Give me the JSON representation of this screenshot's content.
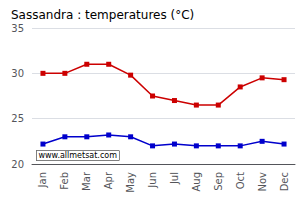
{
  "chart_data": {
    "type": "line",
    "title": "Sassandra : temperatures (°C)",
    "categories": [
      "Jan",
      "Feb",
      "Mar",
      "Apr",
      "May",
      "Jun",
      "Jul",
      "Aug",
      "Sep",
      "Oct",
      "Nov",
      "Dec"
    ],
    "series": [
      {
        "color": "#cc0000",
        "marker": "square",
        "values": [
          30.0,
          30.0,
          31.0,
          31.0,
          29.8,
          27.5,
          27.0,
          26.5,
          26.5,
          28.5,
          29.5,
          29.3
        ]
      },
      {
        "color": "#0000cc",
        "marker": "square",
        "values": [
          22.2,
          23.0,
          23.0,
          23.2,
          23.0,
          22.0,
          22.2,
          22.0,
          22.0,
          22.0,
          22.5,
          22.2
        ]
      }
    ],
    "ylim": [
      20,
      35
    ],
    "yticks": [
      20,
      25,
      30,
      35
    ],
    "grid": true,
    "annotation": "www.allmetsat.com"
  }
}
